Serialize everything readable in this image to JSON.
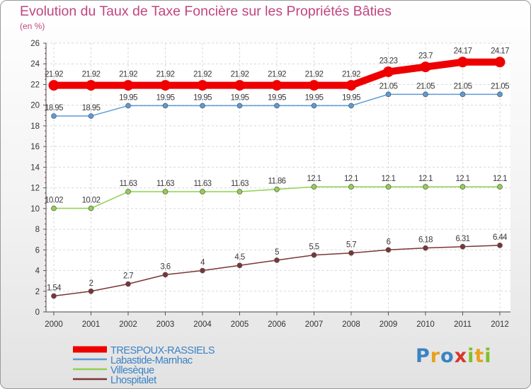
{
  "header": {
    "title": "Evolution du Taux de Taxe Foncière sur les Propriétés Bâties",
    "unit": "(en %)"
  },
  "logo": {
    "text": "Proxiti"
  },
  "chart_data": {
    "type": "line",
    "title": "Evolution du Taux de Taxe Foncière sur les Propriétés Bâties",
    "ylabel": "(en %)",
    "xlabel": "",
    "ylim": [
      0,
      26
    ],
    "yticks": [
      0,
      2,
      4,
      6,
      8,
      10,
      12,
      14,
      16,
      18,
      20,
      22,
      24,
      26
    ],
    "grid": true,
    "legend_position": "bottom-left",
    "categories": [
      "2000",
      "2001",
      "2002",
      "2003",
      "2004",
      "2005",
      "2006",
      "2007",
      "2008",
      "2009",
      "2010",
      "2011",
      "2012"
    ],
    "series": [
      {
        "name": "TRESPOUX-RASSIELS",
        "color": "#ee0000",
        "values": [
          21.92,
          21.92,
          21.92,
          21.92,
          21.92,
          21.92,
          21.92,
          21.92,
          21.92,
          23.23,
          23.7,
          24.17,
          24.17
        ],
        "labels": [
          "21.92",
          "21.92",
          "21.92",
          "21.92",
          "21.92",
          "21.92",
          "21.92",
          "21.92",
          "21.92",
          "23.23",
          "23.7",
          "24.17",
          "24.17"
        ]
      },
      {
        "name": "Labastide-Marnhac",
        "color": "#5b9bd5",
        "values": [
          18.95,
          18.95,
          19.95,
          19.95,
          19.95,
          19.95,
          19.95,
          19.95,
          19.95,
          21.05,
          21.05,
          21.05,
          21.05
        ],
        "labels": [
          "18.95",
          "18.95",
          "19.95",
          "19.95",
          "19.95",
          "19.95",
          "19.95",
          "19.95",
          "19.95",
          "21.05",
          "21.05",
          "21.05",
          "21.05"
        ]
      },
      {
        "name": "Villesèque",
        "color": "#8fd14f",
        "values": [
          10.02,
          10.02,
          11.63,
          11.63,
          11.63,
          11.63,
          11.86,
          12.1,
          12.1,
          12.1,
          12.1,
          12.1,
          12.1
        ],
        "labels": [
          "10.02",
          "10.02",
          "11.63",
          "11.63",
          "11.63",
          "11.63",
          "11.86",
          "12.1",
          "12.1",
          "12.1",
          "12.1",
          "12.1",
          "12.1"
        ]
      },
      {
        "name": "Lhospitalet",
        "color": "#7b3535",
        "values": [
          1.54,
          2,
          2.7,
          3.6,
          4,
          4.5,
          5,
          5.5,
          5.7,
          6,
          6.18,
          6.31,
          6.44
        ],
        "labels": [
          "1.54",
          "2",
          "2.7",
          "3.6",
          "4",
          "4.5",
          "5",
          "5.5",
          "5.7",
          "6",
          "6.18",
          "6.31",
          "6.44"
        ]
      }
    ]
  }
}
